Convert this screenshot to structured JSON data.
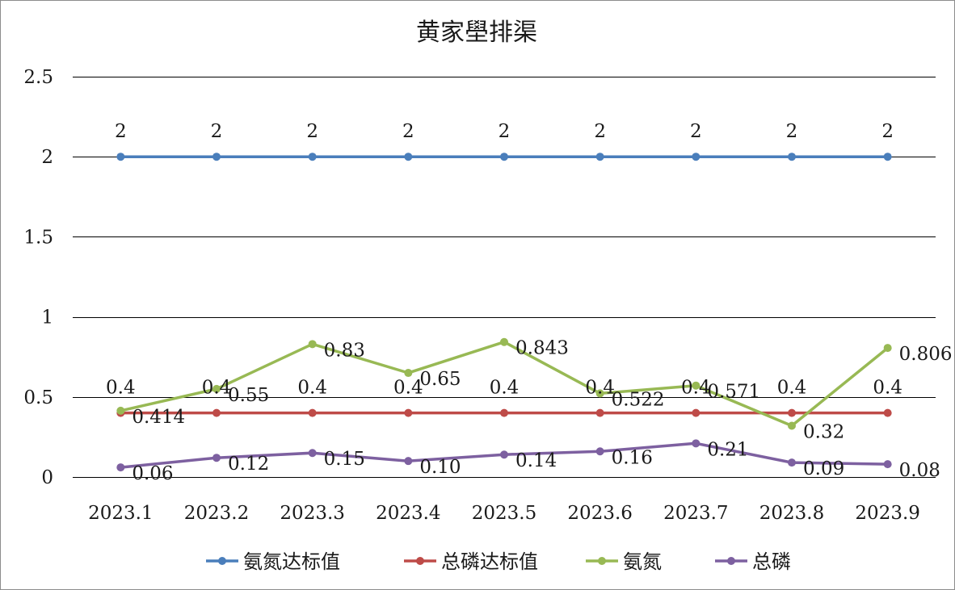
{
  "chart_data": {
    "type": "line",
    "title": "黄家壆排渠",
    "categories": [
      "2023.1",
      "2023.2",
      "2023.3",
      "2023.4",
      "2023.5",
      "2023.6",
      "2023.7",
      "2023.8",
      "2023.9"
    ],
    "ylim": [
      0,
      2.5
    ],
    "yticks": [
      "0",
      "0.5",
      "1",
      "1.5",
      "2",
      "2.5"
    ],
    "ytick_values": [
      0,
      0.5,
      1,
      1.5,
      2,
      2.5
    ],
    "grid": true,
    "legend_position": "bottom",
    "series": [
      {
        "name": "氨氮达标值",
        "color": "#4a7ebb",
        "values": [
          2,
          2,
          2,
          2,
          2,
          2,
          2,
          2,
          2
        ],
        "labels": [
          "2",
          "2",
          "2",
          "2",
          "2",
          "2",
          "2",
          "2",
          "2"
        ],
        "label_position": "above"
      },
      {
        "name": "总磷达标值",
        "color": "#be4b48",
        "values": [
          0.4,
          0.4,
          0.4,
          0.4,
          0.4,
          0.4,
          0.4,
          0.4,
          0.4
        ],
        "labels": [
          "0.4",
          "0.4",
          "0.4",
          "0.4",
          "0.4",
          "0.4",
          "0.4",
          "0.4",
          "0.4"
        ],
        "label_position": "above"
      },
      {
        "name": "氨氮",
        "color": "#98b954",
        "values": [
          0.414,
          0.55,
          0.83,
          0.65,
          0.843,
          0.522,
          0.571,
          0.32,
          0.806
        ],
        "labels": [
          "0.414",
          "0.55",
          "0.83",
          "0.65",
          "0.843",
          "0.522",
          "0.571",
          "0.32",
          "0.806"
        ],
        "label_position": "right"
      },
      {
        "name": "总磷",
        "color": "#7d60a0",
        "values": [
          0.06,
          0.12,
          0.15,
          0.1,
          0.14,
          0.16,
          0.21,
          0.09,
          0.08
        ],
        "labels": [
          "0.06",
          "0.12",
          "0.15",
          "0.10",
          "0.14",
          "0.16",
          "0.21",
          "0.09",
          "0.08"
        ],
        "label_position": "right"
      }
    ]
  }
}
